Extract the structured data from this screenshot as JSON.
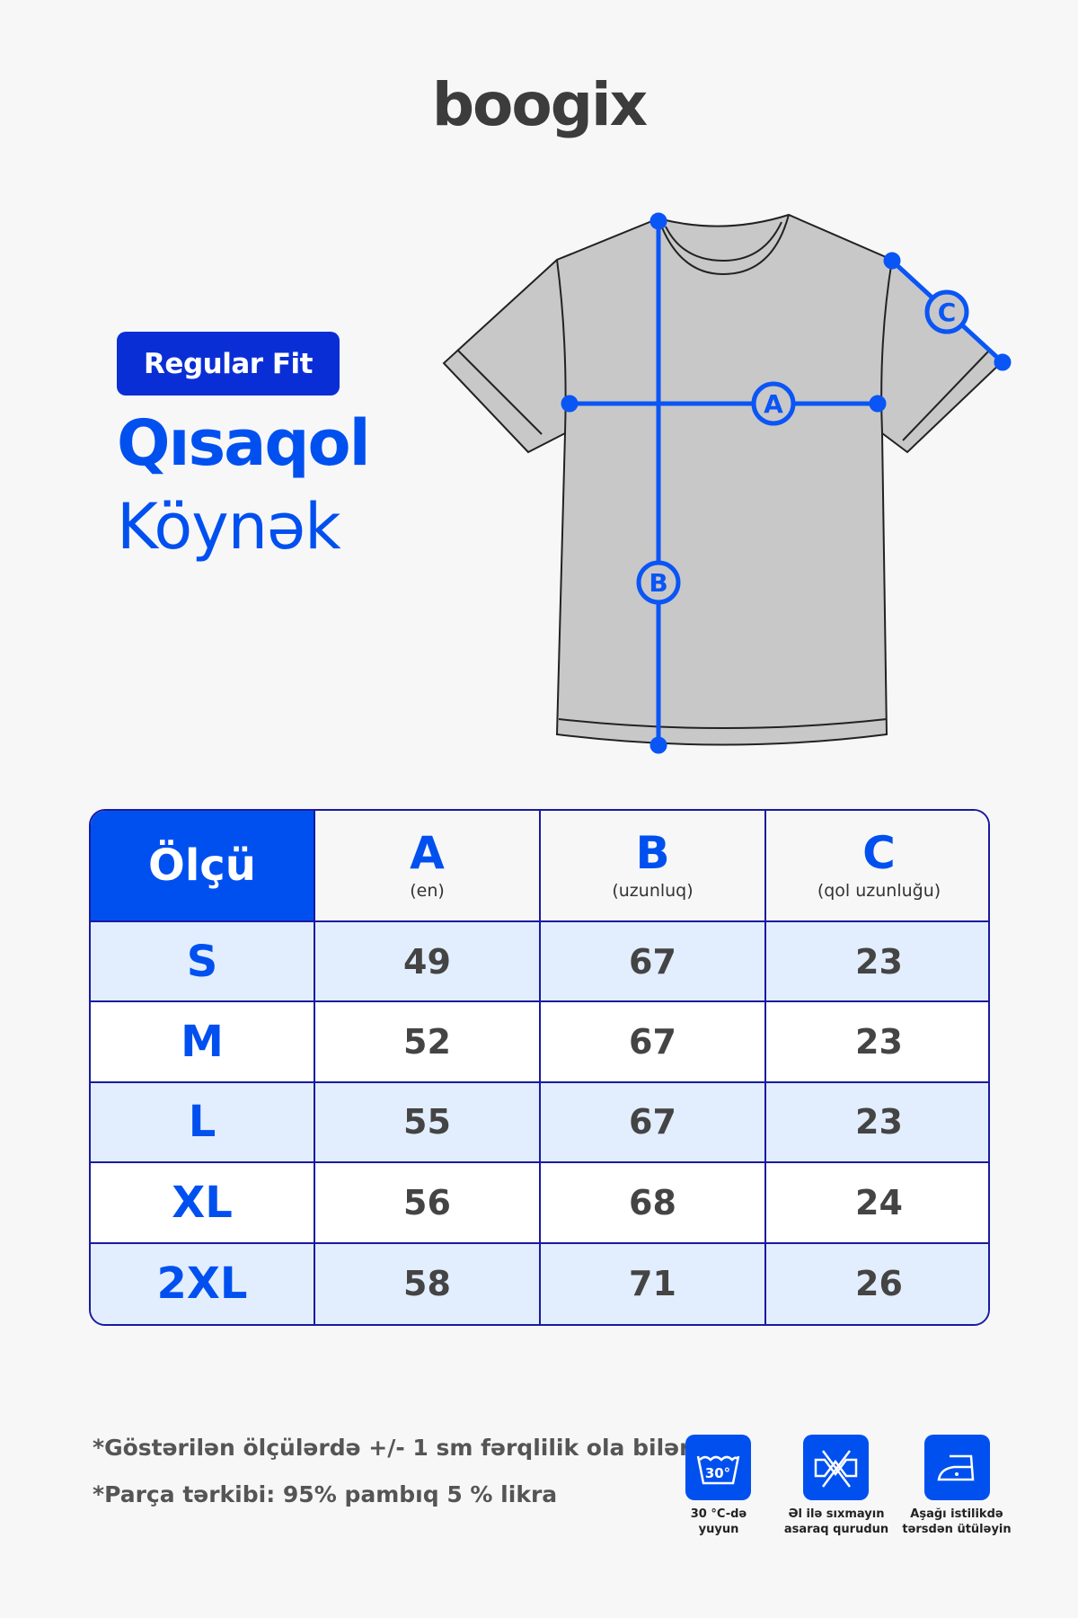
{
  "brand": "boogix",
  "badge": "Regular Fit",
  "title_line1": "Qısaqol",
  "title_line2": "Köynək",
  "diagram_labels": {
    "a": "A",
    "b": "B",
    "c": "C"
  },
  "table": {
    "header": {
      "size": "Ölçü",
      "columns": [
        {
          "letter": "A",
          "sub": "(en)"
        },
        {
          "letter": "B",
          "sub": "(uzunluq)"
        },
        {
          "letter": "C",
          "sub": "(qol uzunluğu)"
        }
      ]
    },
    "rows": [
      {
        "size": "S",
        "a": "49",
        "b": "67",
        "c": "23"
      },
      {
        "size": "M",
        "a": "52",
        "b": "67",
        "c": "23"
      },
      {
        "size": "L",
        "a": "55",
        "b": "67",
        "c": "23"
      },
      {
        "size": "XL",
        "a": "56",
        "b": "68",
        "c": "24"
      },
      {
        "size": "2XL",
        "a": "58",
        "b": "71",
        "c": "26"
      }
    ]
  },
  "notes": [
    "*Göstərilən ölçülərdə +/- 1 sm fərqlilik ola bilər.",
    "*Parça tərkibi: 95% pambıq 5 % likra"
  ],
  "care": [
    {
      "icon": "wash-30-icon",
      "temp": "30°",
      "line1": "30 °C-də",
      "line2": "yuyun"
    },
    {
      "icon": "do-not-wring-icon",
      "line1": "Əl ilə sıxmayın",
      "line2": "asaraq qurudun"
    },
    {
      "icon": "iron-low-icon",
      "line1": "Aşağı istilikdə",
      "line2": "tərsdən ütüləyin"
    }
  ],
  "colors": {
    "accent": "#0050f0",
    "border": "#1a1aa0",
    "row_alt": "#e2eefd",
    "shirt": "#c8c8c8"
  }
}
